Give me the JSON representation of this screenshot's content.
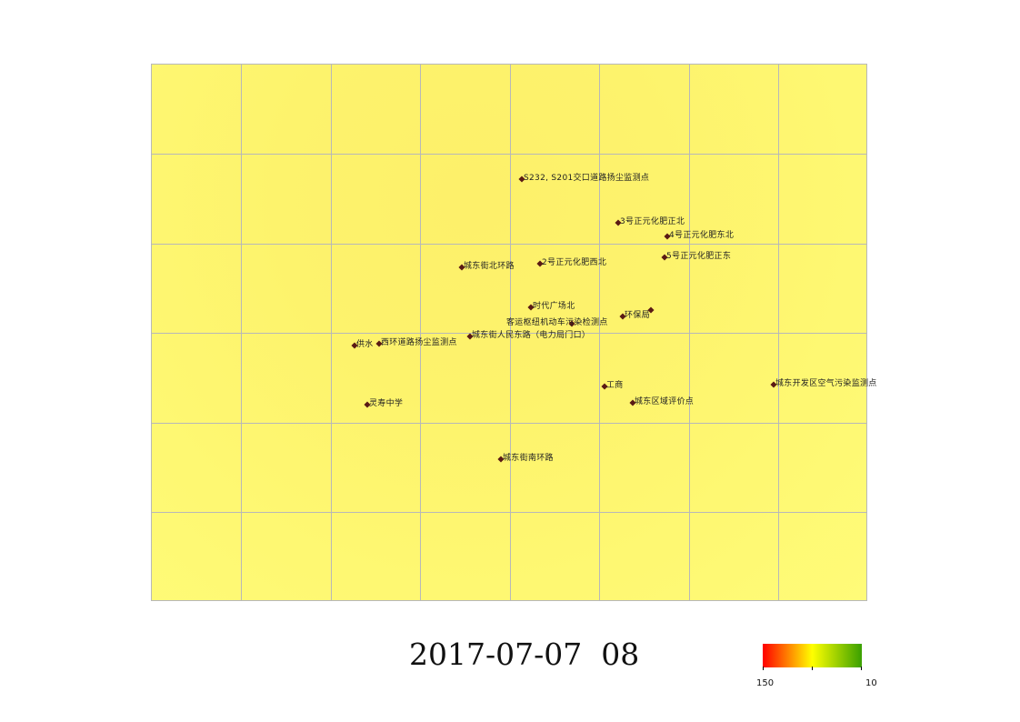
{
  "timestamp": "2017-07-07  08",
  "colors": {
    "map_fill": "#fdf36c",
    "grid": "#b8b8b8",
    "marker": "#5a1a14",
    "scale_low": "#ff0000",
    "scale_mid": "#ffff00",
    "scale_high": "#3aa000"
  },
  "stations": [
    {
      "label": "S232, S201交口道路扬尘监测点"
    },
    {
      "label": "3号正元化肥正北"
    },
    {
      "label": "4号正元化肥东北"
    },
    {
      "label": "城东街北环路"
    },
    {
      "label": "2号正元化肥西北"
    },
    {
      "label": "5号正元化肥正东"
    },
    {
      "label": "时代广场北"
    },
    {
      "label": "环保局"
    },
    {
      "label": "客运枢纽机动车污染检测点"
    },
    {
      "label": "城东街人民东路（电力局门口）"
    },
    {
      "label": "供水"
    },
    {
      "label": "西环道路扬尘监测点"
    },
    {
      "label": "工商"
    },
    {
      "label": "城东开发区空气污染监测点"
    },
    {
      "label": "灵寿中学"
    },
    {
      "label": "城东区域评价点"
    },
    {
      "label": "城东街南环路"
    }
  ],
  "legend": {
    "left_value": "150",
    "right_value": "10"
  }
}
